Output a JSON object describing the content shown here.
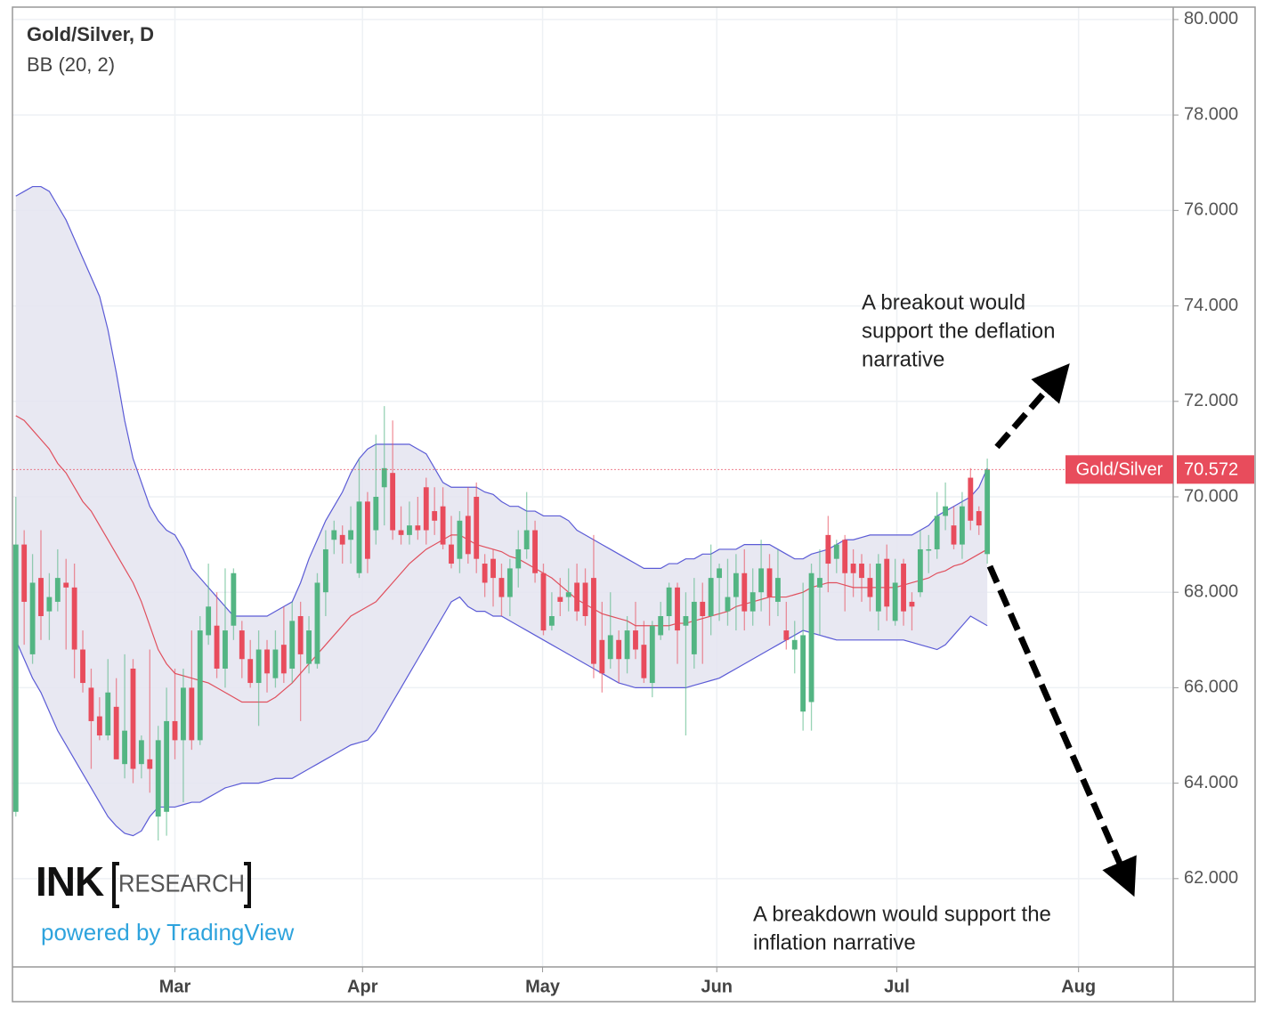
{
  "chart_data": {
    "type": "candlestick",
    "title": "Gold/Silver, D",
    "subtitle": "BB (20, 2)",
    "xlim": [
      -0.4,
      138.2
    ],
    "xticks": [
      {
        "value": 19,
        "label": "Mar"
      },
      {
        "value": 41.4,
        "label": "Apr"
      },
      {
        "value": 62.9,
        "label": "May"
      },
      {
        "value": 83.7,
        "label": "Jun"
      },
      {
        "value": 105.2,
        "label": "Jul"
      },
      {
        "value": 126.9,
        "label": "Aug"
      }
    ],
    "ylim": [
      60.15,
      80.26
    ],
    "yticks": [
      {
        "value": 62,
        "label": "62.000"
      },
      {
        "value": 64,
        "label": "64.000"
      },
      {
        "value": 66,
        "label": "66.000"
      },
      {
        "value": 68,
        "label": "68.000"
      },
      {
        "value": 70,
        "label": "70.000"
      },
      {
        "value": 72,
        "label": "72.000"
      },
      {
        "value": 74,
        "label": "74.000"
      },
      {
        "value": 76,
        "label": "76.000"
      },
      {
        "value": 78,
        "label": "78.000"
      },
      {
        "value": 80,
        "label": "80.000"
      }
    ],
    "grid": true,
    "series": [
      {
        "name": "Gold/Silver",
        "up_color": "#53b583",
        "down_color": "#e84c5c",
        "open": [
          63.4,
          69.0,
          66.7,
          68.3,
          67.6,
          67.8,
          68.2,
          68.1,
          66.8,
          66.0,
          65.4,
          65.0,
          65.6,
          64.4,
          66.4,
          64.4,
          64.5,
          63.3,
          63.4,
          65.3,
          64.9,
          66.0,
          64.9,
          67.1,
          67.3,
          66.4,
          67.3,
          67.2,
          66.6,
          66.1,
          66.8,
          66.2,
          66.9,
          66.4,
          67.5,
          66.5,
          66.5,
          68.0,
          69.1,
          69.2,
          69.1,
          68.4,
          69.9,
          69.3,
          70.2,
          70.5,
          69.3,
          69.2,
          69.4,
          70.2,
          69.7,
          69.8,
          69.0,
          68.7,
          69.6,
          70.0,
          68.6,
          68.7,
          68.3,
          67.9,
          68.5,
          68.9,
          69.3,
          68.4,
          67.3,
          67.9,
          67.9,
          68.2,
          68.2,
          68.3,
          67.0,
          66.6,
          67.0,
          66.6,
          67.2,
          66.9,
          66.1,
          67.1,
          67.5,
          68.1,
          67.3,
          66.7,
          67.8,
          67.5,
          68.3,
          67.6,
          67.9,
          68.4,
          67.6,
          68.0,
          68.5,
          67.8,
          67.2,
          66.8,
          65.5,
          65.7,
          68.1,
          69.2,
          68.7,
          69.1,
          68.6,
          68.6,
          68.3,
          67.6,
          68.7,
          67.4,
          68.6,
          67.8,
          68.0,
          68.9,
          68.9,
          69.6,
          69.4,
          69.0,
          70.4,
          69.7,
          68.8
        ],
        "high": [
          70.0,
          69.3,
          68.8,
          69.3,
          68.4,
          68.9,
          68.7,
          68.6,
          67.2,
          66.4,
          65.8,
          66.6,
          66.2,
          66.7,
          66.6,
          65.0,
          66.8,
          65.2,
          66.0,
          66.4,
          66.4,
          67.2,
          67.5,
          68.6,
          68.0,
          68.5,
          68.5,
          67.4,
          67.0,
          67.2,
          67.0,
          67.2,
          67.7,
          67.8,
          67.8,
          67.5,
          68.4,
          69.3,
          69.5,
          69.4,
          69.8,
          70.8,
          70.1,
          71.3,
          71.9,
          71.6,
          69.8,
          69.9,
          70.0,
          70.4,
          70.2,
          70.2,
          69.6,
          69.7,
          70.2,
          70.3,
          68.8,
          68.9,
          68.6,
          68.7,
          69.3,
          70.1,
          69.5,
          68.6,
          68.0,
          68.3,
          68.5,
          68.6,
          68.5,
          69.2,
          67.8,
          68.0,
          67.2,
          67.5,
          67.8,
          67.4,
          67.4,
          67.8,
          68.2,
          68.2,
          68.0,
          68.3,
          68.2,
          69.0,
          68.6,
          68.7,
          68.8,
          68.9,
          68.5,
          69.1,
          68.8,
          68.9,
          67.8,
          67.4,
          68.2,
          68.6,
          68.9,
          69.6,
          69.1,
          69.2,
          68.9,
          68.8,
          68.6,
          68.8,
          69.0,
          68.7,
          68.7,
          68.0,
          69.3,
          69.2,
          70.1,
          70.3,
          69.8,
          70.1,
          70.6,
          69.8,
          70.8
        ],
        "low": [
          63.3,
          66.9,
          66.5,
          67.0,
          67.0,
          67.6,
          66.8,
          66.2,
          65.9,
          64.3,
          64.9,
          64.9,
          64.5,
          64.1,
          64.0,
          64.1,
          63.8,
          62.8,
          62.9,
          64.5,
          63.6,
          64.7,
          64.8,
          66.9,
          66.2,
          66.0,
          67.0,
          66.2,
          66.0,
          65.2,
          65.9,
          66.0,
          66.1,
          66.1,
          65.3,
          66.3,
          66.4,
          67.5,
          68.8,
          68.6,
          68.6,
          68.3,
          68.4,
          69.0,
          69.4,
          69.1,
          69.0,
          69.0,
          69.1,
          69.0,
          69.2,
          68.9,
          68.5,
          68.4,
          68.6,
          68.4,
          67.9,
          67.7,
          67.5,
          67.5,
          68.1,
          68.7,
          68.2,
          67.1,
          67.2,
          67.5,
          67.6,
          67.4,
          67.3,
          66.2,
          65.9,
          66.4,
          66.1,
          66.3,
          66.6,
          66.1,
          65.8,
          67.0,
          67.2,
          66.5,
          65.0,
          66.4,
          66.5,
          67.1,
          67.4,
          67.3,
          67.2,
          67.2,
          67.3,
          67.6,
          67.3,
          67.5,
          66.8,
          66.3,
          65.1,
          65.1,
          67.1,
          68.0,
          68.4,
          67.6,
          67.9,
          67.8,
          67.6,
          67.2,
          67.4,
          67.3,
          67.3,
          67.2,
          67.9,
          68.4,
          68.7,
          69.3,
          68.9,
          68.7,
          69.3,
          69.2,
          68.6
        ],
        "close": [
          69.0,
          67.8,
          68.2,
          67.5,
          67.9,
          68.3,
          68.1,
          66.8,
          66.1,
          65.3,
          65.0,
          65.9,
          64.5,
          65.1,
          64.3,
          64.9,
          64.3,
          64.9,
          65.3,
          64.9,
          66.0,
          64.9,
          67.2,
          67.7,
          66.4,
          67.2,
          68.4,
          66.6,
          66.1,
          66.8,
          66.3,
          66.8,
          66.3,
          67.4,
          66.7,
          67.2,
          68.2,
          68.9,
          69.3,
          69.0,
          69.3,
          69.9,
          68.7,
          70.0,
          70.6,
          69.3,
          69.2,
          69.4,
          69.3,
          69.3,
          69.5,
          69.0,
          68.6,
          69.5,
          68.8,
          68.7,
          68.2,
          68.3,
          67.9,
          68.5,
          68.9,
          69.3,
          68.4,
          67.2,
          67.5,
          67.8,
          68.0,
          67.6,
          67.5,
          66.5,
          66.3,
          67.1,
          66.6,
          67.2,
          66.8,
          66.2,
          67.3,
          67.5,
          68.1,
          67.2,
          67.5,
          67.8,
          67.5,
          68.3,
          68.5,
          67.9,
          68.4,
          67.6,
          68.0,
          68.5,
          67.9,
          68.3,
          67.0,
          67.0,
          67.1,
          68.4,
          68.3,
          68.6,
          69.0,
          68.4,
          68.4,
          68.3,
          67.9,
          68.6,
          67.7,
          68.2,
          67.6,
          67.7,
          68.9,
          68.9,
          69.6,
          69.8,
          69.0,
          69.8,
          69.5,
          69.4,
          70.572
        ]
      }
    ],
    "bands": {
      "line_color": "#5b5bd6",
      "middle_color": "#e0505e",
      "fill": "#e4e4f0",
      "upper": [
        76.3,
        76.4,
        76.5,
        76.5,
        76.4,
        76.1,
        75.8,
        75.4,
        75.0,
        74.6,
        74.2,
        73.5,
        72.6,
        71.6,
        70.8,
        70.3,
        69.8,
        69.5,
        69.3,
        69.2,
        68.9,
        68.5,
        68.3,
        68.1,
        67.9,
        67.7,
        67.5,
        67.5,
        67.5,
        67.5,
        67.5,
        67.6,
        67.7,
        67.8,
        68.2,
        68.7,
        69.1,
        69.5,
        69.8,
        70.1,
        70.5,
        70.8,
        71.0,
        71.1,
        71.1,
        71.1,
        71.1,
        71.1,
        71.0,
        70.9,
        70.6,
        70.3,
        70.2,
        70.2,
        70.2,
        70.2,
        70.1,
        70.05,
        69.9,
        69.8,
        69.8,
        69.7,
        69.7,
        69.6,
        69.6,
        69.6,
        69.5,
        69.3,
        69.2,
        69.1,
        69.0,
        68.9,
        68.8,
        68.7,
        68.6,
        68.5,
        68.5,
        68.5,
        68.6,
        68.6,
        68.7,
        68.7,
        68.8,
        68.8,
        68.9,
        68.9,
        68.9,
        69.0,
        69.0,
        69.0,
        69.0,
        68.9,
        68.8,
        68.7,
        68.7,
        68.8,
        68.85,
        68.9,
        69.0,
        69.1,
        69.1,
        69.15,
        69.2,
        69.2,
        69.2,
        69.2,
        69.2,
        69.2,
        69.3,
        69.4,
        69.6,
        69.7,
        69.8,
        69.9,
        70.0,
        70.2,
        70.6
      ],
      "middle": [
        71.7,
        71.6,
        71.4,
        71.2,
        71.0,
        70.7,
        70.5,
        70.2,
        69.9,
        69.7,
        69.4,
        69.1,
        68.8,
        68.5,
        68.2,
        67.8,
        67.3,
        66.8,
        66.5,
        66.3,
        66.25,
        66.2,
        66.15,
        66.1,
        66.0,
        65.9,
        65.8,
        65.7,
        65.7,
        65.7,
        65.7,
        65.8,
        65.95,
        66.1,
        66.3,
        66.5,
        66.7,
        66.9,
        67.1,
        67.3,
        67.5,
        67.6,
        67.7,
        67.8,
        68.0,
        68.2,
        68.4,
        68.6,
        68.75,
        68.9,
        69.0,
        69.1,
        69.2,
        69.2,
        69.1,
        69.0,
        68.95,
        68.9,
        68.85,
        68.75,
        68.7,
        68.6,
        68.5,
        68.4,
        68.3,
        68.15,
        68.0,
        67.85,
        67.75,
        67.65,
        67.55,
        67.5,
        67.45,
        67.4,
        67.3,
        67.3,
        67.3,
        67.3,
        67.3,
        67.35,
        67.35,
        67.4,
        67.45,
        67.5,
        67.55,
        67.6,
        67.7,
        67.75,
        67.8,
        67.85,
        67.9,
        67.9,
        67.9,
        67.95,
        68.0,
        68.1,
        68.15,
        68.2,
        68.2,
        68.15,
        68.1,
        68.1,
        68.1,
        68.1,
        68.1,
        68.1,
        68.15,
        68.2,
        68.25,
        68.3,
        68.4,
        68.45,
        68.55,
        68.6,
        68.7,
        68.8,
        68.9
      ],
      "lower": [
        67.0,
        66.6,
        66.2,
        65.9,
        65.5,
        65.1,
        64.8,
        64.5,
        64.2,
        63.9,
        63.6,
        63.3,
        63.1,
        62.95,
        62.9,
        63.0,
        63.3,
        63.5,
        63.5,
        63.5,
        63.55,
        63.6,
        63.6,
        63.7,
        63.8,
        63.9,
        63.95,
        64.0,
        64.0,
        64.0,
        64.05,
        64.1,
        64.1,
        64.1,
        64.2,
        64.3,
        64.4,
        64.5,
        64.6,
        64.7,
        64.8,
        64.85,
        64.9,
        65.1,
        65.4,
        65.7,
        66.0,
        66.3,
        66.6,
        66.9,
        67.2,
        67.5,
        67.8,
        67.9,
        67.7,
        67.6,
        67.6,
        67.5,
        67.5,
        67.4,
        67.3,
        67.2,
        67.1,
        67.0,
        66.9,
        66.8,
        66.7,
        66.6,
        66.5,
        66.4,
        66.3,
        66.2,
        66.1,
        66.05,
        66.0,
        66.0,
        66.0,
        66.0,
        66.0,
        66.0,
        66.0,
        66.05,
        66.1,
        66.15,
        66.2,
        66.3,
        66.4,
        66.5,
        66.6,
        66.7,
        66.8,
        66.9,
        67.0,
        67.1,
        67.2,
        67.15,
        67.1,
        67.05,
        67.0,
        67.0,
        67.0,
        67.0,
        67.0,
        67.0,
        67.0,
        67.0,
        67.0,
        66.95,
        66.9,
        66.85,
        66.8,
        66.9,
        67.1,
        67.3,
        67.5,
        67.4,
        67.3
      ]
    },
    "annotations": [
      {
        "lines": [
          "A breakout would",
          "support the deflation",
          "narrative"
        ]
      },
      {
        "lines": [
          "A breakdown would support the",
          "inflation narrative"
        ]
      }
    ],
    "watermark": {
      "brand": "INK",
      "brand_sub": "RESEARCH",
      "credit": "powered by TradingView"
    }
  }
}
